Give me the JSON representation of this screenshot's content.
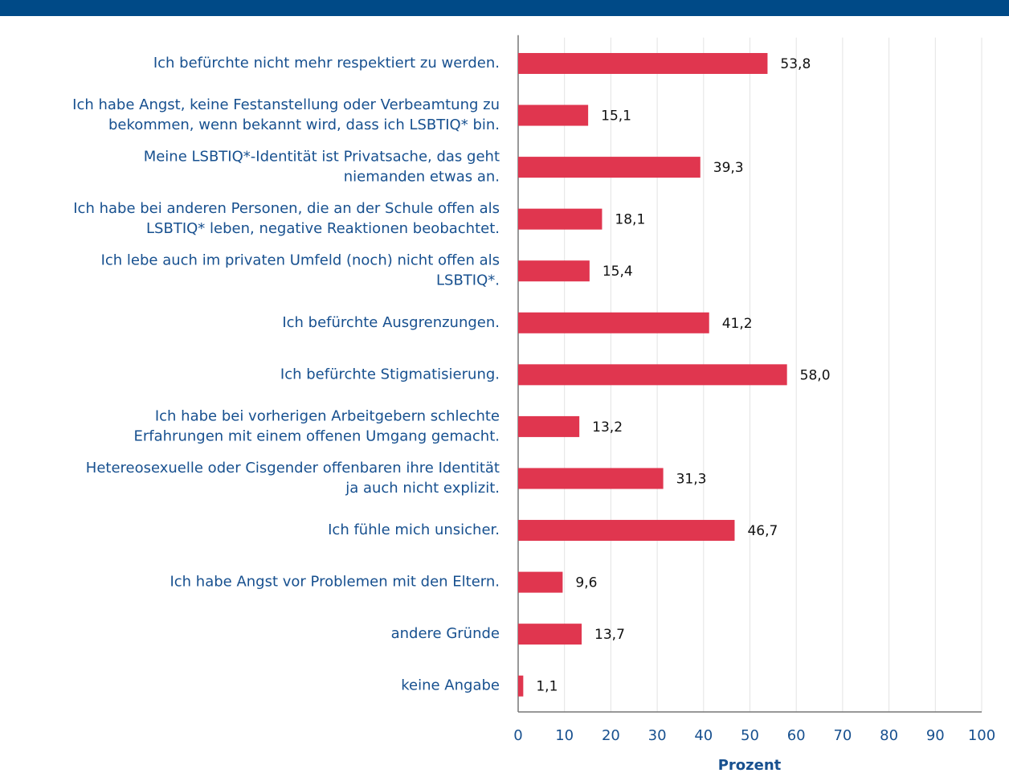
{
  "chart_data": {
    "type": "hbar",
    "categories": [
      "Ich befürchte nicht mehr respektiert zu werden.",
      "Ich habe Angst, keine Festanstellung oder Verbeamtung zu\nbekommen, wenn bekannt wird, dass ich LSBTIQ* bin.",
      "Meine LSBTIQ*-Identität ist Privatsache, das geht\nniemanden etwas an.",
      "Ich habe bei anderen Personen, die an der Schule offen als\nLSBTIQ* leben, negative Reaktionen beobachtet.",
      "Ich lebe auch im privaten Umfeld (noch) nicht offen als\nLSBTIQ*.",
      "Ich befürchte Ausgrenzungen.",
      "Ich befürchte Stigmatisierung.",
      "Ich habe bei vorherigen Arbeitgebern schlechte\nErfahrungen mit einem offenen Umgang gemacht.",
      "Hetereosexuelle oder Cisgender offenbaren ihre Identität\nja auch nicht explizit.",
      "Ich fühle mich unsicher.",
      "Ich habe Angst vor Problemen mit den Eltern.",
      "andere Gründe",
      "keine Angabe"
    ],
    "values": [
      53.8,
      15.1,
      39.3,
      18.1,
      15.4,
      41.2,
      58.0,
      13.2,
      31.3,
      46.7,
      9.6,
      13.7,
      1.1
    ],
    "value_labels": [
      "53,8",
      "15,1",
      "39,3",
      "18,1",
      "15,4",
      "41,2",
      "58,0",
      "13,2",
      "31,3",
      "46,7",
      "9,6",
      "13,7",
      "1,1"
    ],
    "color": "#e0364f",
    "xlabel": "Prozent",
    "xlim": [
      0,
      100
    ],
    "xticks": [
      0,
      10,
      20,
      30,
      40,
      50,
      60,
      70,
      80,
      90,
      100
    ],
    "grid": true
  }
}
